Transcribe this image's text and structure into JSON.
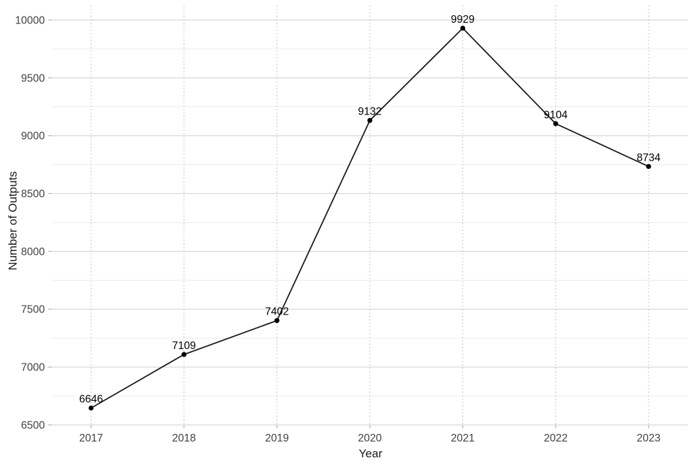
{
  "chart_data": {
    "type": "line",
    "title": "",
    "xlabel": "Year",
    "ylabel": "Number of Outputs",
    "categories": [
      "2017",
      "2018",
      "2019",
      "2020",
      "2021",
      "2022",
      "2023"
    ],
    "series": [
      {
        "name": "Number of Outputs",
        "values": [
          6646,
          7109,
          7402,
          9132,
          9929,
          9104,
          8734
        ],
        "point_labels": [
          "6646",
          "7109",
          "7402",
          "9132",
          "9929",
          "9104",
          "8734"
        ]
      }
    ],
    "ylim": [
      6500,
      10000
    ],
    "yticks": [
      6500,
      7000,
      7500,
      8000,
      8500,
      9000,
      9500,
      10000
    ],
    "minor_yticks": [
      6750,
      7250,
      7750,
      8250,
      8750,
      9250,
      9750
    ],
    "legend": "none",
    "grid": {
      "horizontal_major": "solid",
      "horizontal_minor": "solid",
      "vertical_major": "dotted",
      "vertical_minor": "none"
    },
    "colors": {
      "line": "#1a1a1a",
      "point": "#000000",
      "data_label": "#000000",
      "major_grid": "#d8d8d8",
      "minor_grid": "#ececec",
      "vertical_grid": "#bdbdbd",
      "tick_mark": "#b3b3b3",
      "tick_label": "#404040",
      "axis_title": "#1a1a1a",
      "background": "#ffffff"
    }
  }
}
